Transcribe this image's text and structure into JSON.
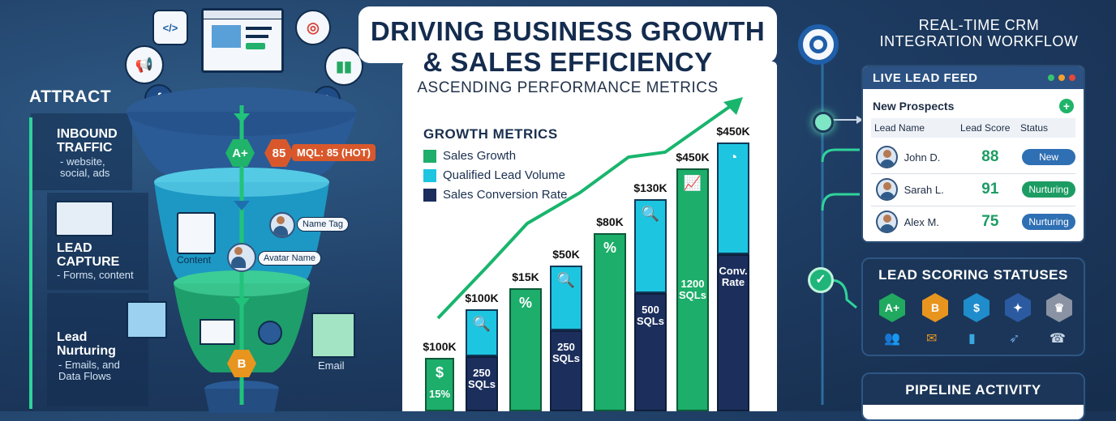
{
  "left": {
    "attract": "ATTRACT",
    "inbound_title": "INBOUND\nTRAFFIC",
    "inbound_sub": "- website,\nsocial, ads",
    "capture_title": "LEAD\nCAPTURE",
    "capture_sub": "- Forms, content",
    "nurture_title": "Lead\nNurturing",
    "nurture_sub": "- Emails, and\nData Flows",
    "badge_aplus": "A+",
    "badge_85": "85",
    "mql_tag": "MQL: 85 (HOT)",
    "name_tag": "Name Tag",
    "content_label": "Content",
    "avatar_name": "Avatar Name",
    "email_label": "Email",
    "badge_b": "B"
  },
  "header": {
    "title_line1": "DRIVING BUSINESS GROWTH",
    "title_line2": "& SALES EFFICIENCY",
    "subtitle": "ASCENDING PERFORMANCE METRICS"
  },
  "chart_data": {
    "type": "bar",
    "title": "GROWTH METRICS",
    "legend": [
      "Sales Growth",
      "Qualified Lead Volume",
      "Sales Conversion Rate"
    ],
    "colors": {
      "sales_growth": "#1cae6a",
      "qualified_leads": "#1ec5e0",
      "conversion": "#1b2e5c"
    },
    "bars": [
      {
        "top_label": "$100K",
        "series": "Sales Growth",
        "inner_label": "15%",
        "icon": "dollar-icon"
      },
      {
        "top_label": "$100K",
        "series": "Qualified Lead Volume / Sales Conversion Rate",
        "inner_label": "250\nSQLs",
        "icon": "search-icon"
      },
      {
        "top_label": "$15K",
        "series": "Sales Growth",
        "inner_label": "",
        "icon": "percent-icon"
      },
      {
        "top_label": "$50K",
        "series": "Qualified Lead Volume / Sales Conversion Rate",
        "inner_label": "250\nSQLs",
        "icon": "search-icon"
      },
      {
        "top_label": "$80K",
        "series": "Sales Growth",
        "inner_label": "",
        "icon": "percent-icon"
      },
      {
        "top_label": "$130K",
        "series": "Qualified Lead Volume / Sales Conversion Rate",
        "inner_label": "500\nSQLs",
        "icon": "search-icon"
      },
      {
        "top_label": "$450K",
        "series": "Sales Growth",
        "inner_label": "1200\nSQLs",
        "icon": "chart-icon"
      },
      {
        "top_label": "$450K",
        "series": "Qualified Lead Volume / Sales Conversion Rate",
        "inner_label": "Conv.\nRate",
        "icon": "gauge-icon"
      }
    ]
  },
  "right": {
    "title_line1": "REAL-TIME CRM",
    "title_line2": "INTEGRATION WORKFLOW",
    "feed": {
      "title": "LIVE LEAD FEED",
      "section": "New Prospects",
      "col_name": "Lead Name",
      "col_score": "Lead Score",
      "col_status": "Status",
      "rows": [
        {
          "name": "John D.",
          "score": "88",
          "status": "New",
          "status_color": "#2f6fb3"
        },
        {
          "name": "Sarah L.",
          "score": "91",
          "status": "Nurturing",
          "status_color": "#1c9c63"
        },
        {
          "name": "Alex M.",
          "score": "75",
          "status": "Nurturing",
          "status_color": "#2f6fb3"
        }
      ]
    },
    "scoring": {
      "title": "LEAD SCORING STATUSES",
      "badges": [
        {
          "label": "A+",
          "color": "#21a95f"
        },
        {
          "label": "B",
          "color": "#e8951f"
        },
        {
          "label": "$",
          "color": "#1f8ccc"
        },
        {
          "label": "✦",
          "color": "#2b5aa0"
        },
        {
          "label": "♛",
          "color": "#8a93a3"
        }
      ]
    },
    "pipeline": {
      "title": "PIPELINE ACTIVITY"
    }
  }
}
